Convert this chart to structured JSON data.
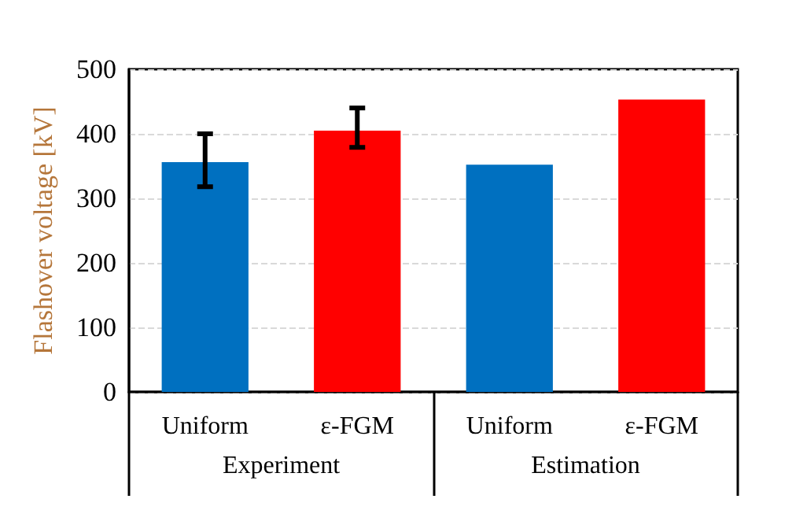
{
  "chart_data": {
    "type": "bar",
    "ylabel": "Flashover voltage [kV]",
    "categories": [
      "Uniform",
      "ε-FGM",
      "Uniform",
      "ε-FGM"
    ],
    "values": [
      356,
      405,
      352,
      453
    ],
    "colors": [
      "#0070c0",
      "#ff0000",
      "#0070c0",
      "#ff0000"
    ],
    "errors": [
      [
        318,
        400
      ],
      [
        379,
        440
      ],
      null,
      null
    ],
    "ylim": [
      0,
      500
    ],
    "yticks": [
      0,
      100,
      200,
      300,
      400,
      500
    ],
    "grid": "y",
    "annotations": [
      "Experiment",
      "Estimation"
    ]
  }
}
